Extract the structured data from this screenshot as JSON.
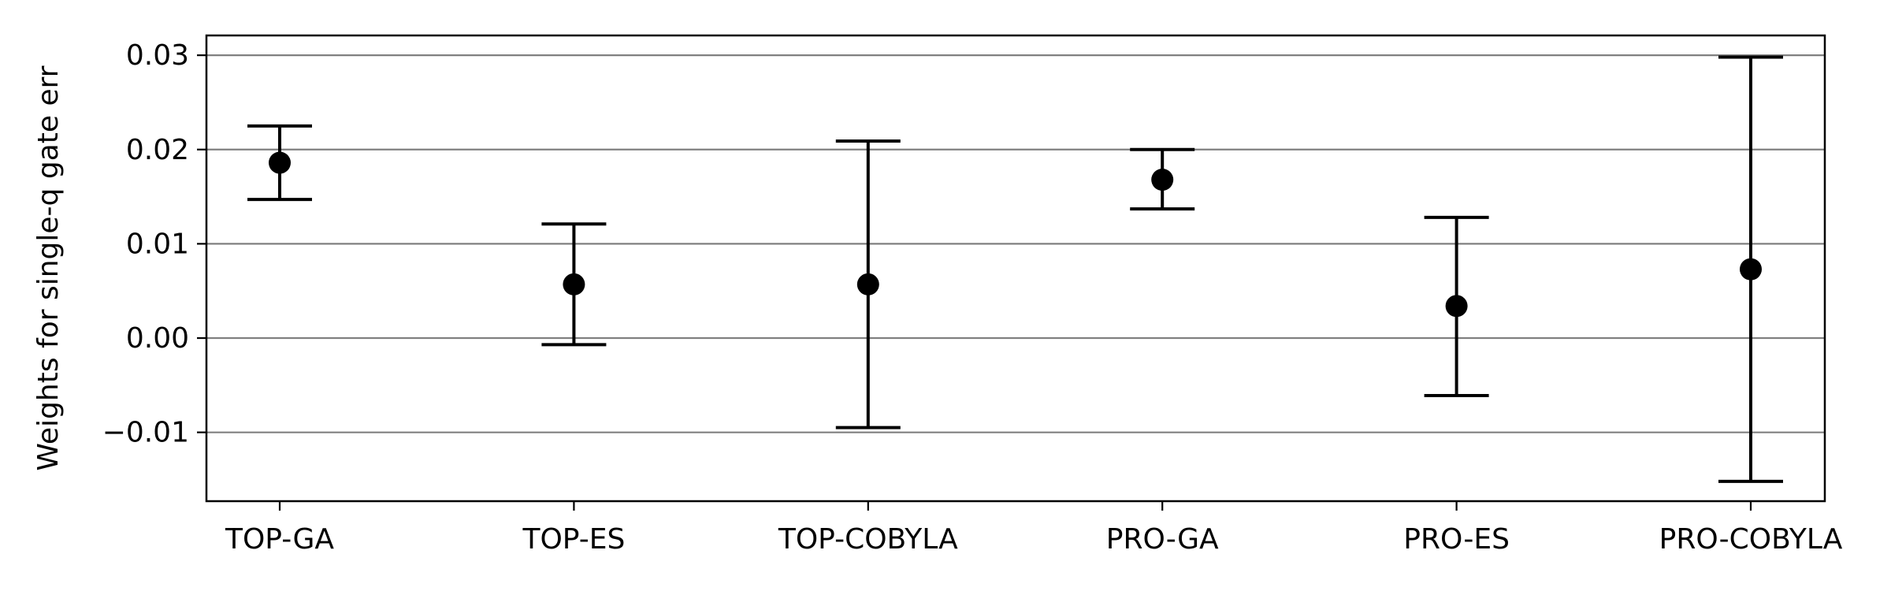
{
  "chart_data": {
    "type": "scatter",
    "variant": "errorbar",
    "title": "",
    "xlabel": "",
    "ylabel": "Weights for single-q gate err",
    "categories": [
      "TOP-GA",
      "TOP-ES",
      "TOP-COBYLA",
      "PRO-GA",
      "PRO-ES",
      "PRO-COBYLA"
    ],
    "series": [
      {
        "values": [
          0.0186,
          0.0057,
          0.0057,
          0.0168,
          0.0034,
          0.0073
        ],
        "lower": [
          0.0147,
          -0.0007,
          -0.0095,
          0.0137,
          -0.0061,
          -0.0152
        ],
        "upper": [
          0.0225,
          0.0121,
          0.0209,
          0.02,
          0.0128,
          0.0298
        ]
      }
    ],
    "ylim": [
      -0.0173,
      0.0321
    ],
    "yticks": [
      -0.01,
      0.0,
      0.01,
      0.02,
      0.03
    ],
    "ytick_labels": [
      "−0.01",
      "0.00",
      "0.01",
      "0.02",
      "0.03"
    ],
    "grid": "y",
    "legend": "none",
    "colors": {
      "marker": "#000000",
      "grid": "#808080",
      "axis": "#000000"
    }
  }
}
